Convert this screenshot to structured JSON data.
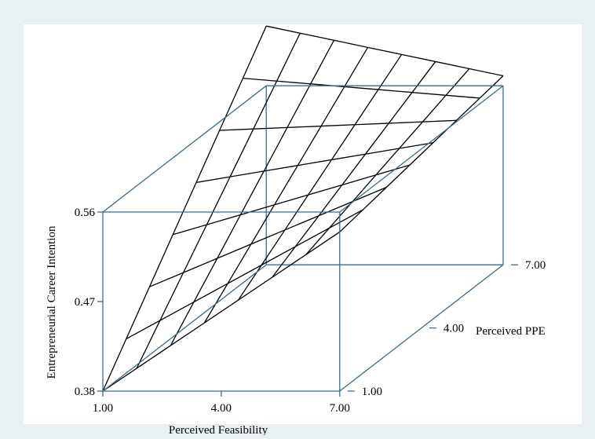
{
  "chart_data": {
    "type": "surface3d",
    "title": "",
    "xlabel": "Perceived Feasibility",
    "ylabel": "Entrepreneurial Career Intention",
    "zlabel": "Perceived PPE",
    "x_ticks": [
      "1.00",
      "4.00",
      "7.00"
    ],
    "y_ticks": [
      "0.38",
      "0.47",
      "0.56"
    ],
    "z_ticks": [
      "1.00",
      "4.00",
      "7.00"
    ],
    "xlim": [
      1,
      7
    ],
    "ylim": [
      0.38,
      0.56
    ],
    "zlim": [
      1,
      7
    ],
    "grid_steps": 7,
    "corner_values": [
      {
        "feasibility": 1,
        "ppe": 1,
        "intention": 0.38
      },
      {
        "feasibility": 7,
        "ppe": 1,
        "intention": 0.54
      },
      {
        "feasibility": 1,
        "ppe": 7,
        "intention": 0.62
      },
      {
        "feasibility": 7,
        "ppe": 7,
        "intention": 0.57
      }
    ],
    "colors": {
      "background": "#e9f0f4",
      "plot": "#ffffff",
      "box": "#3f6a86",
      "mesh": "#000000"
    }
  }
}
